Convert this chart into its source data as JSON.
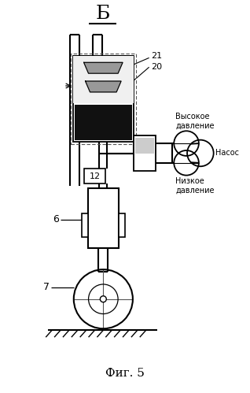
{
  "title_label": "Б",
  "fig_label": "Фиг. 5",
  "labels": {
    "21": "21",
    "20": "20",
    "12": "12",
    "6": "6",
    "7": "7",
    "high_pressure": "Высокое\nдавление",
    "pump": "Насос",
    "low_pressure": "Низкое\nдавление"
  },
  "bg_color": "#ffffff",
  "line_color": "#000000"
}
